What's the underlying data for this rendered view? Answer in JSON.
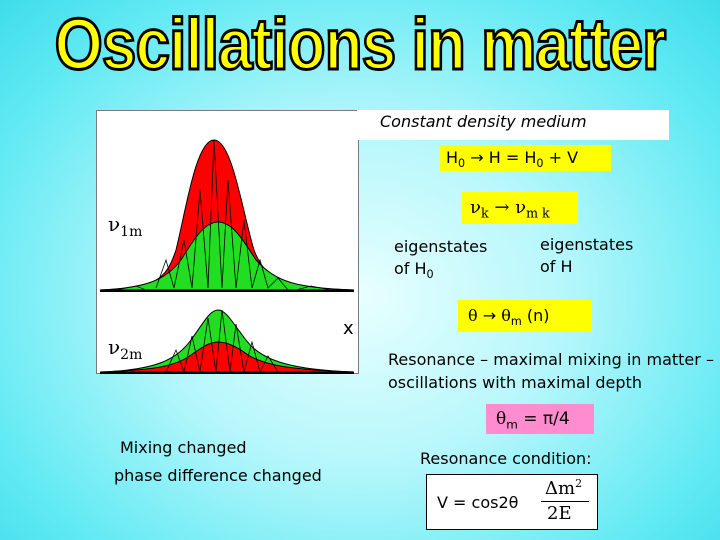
{
  "title": "Oscillations in matter",
  "panel_header": "Constant density medium",
  "hamiltonian": {
    "H0": "H",
    "sub0": "0",
    "arrow": "→",
    "rhs": "H = H",
    "rhs_sub": "0",
    "tail": "+ V"
  },
  "nu_k": {
    "nu": "ν",
    "k": "k",
    "arrow": "→",
    "nu2": "ν",
    "mk": "m k"
  },
  "nu1m": {
    "nu": "ν",
    "sub": "1m"
  },
  "nu2m": {
    "nu": "ν",
    "sub": "2m"
  },
  "eigen_H0": {
    "line1": "eigenstates",
    "line2": "of H",
    "sub": "0"
  },
  "eigen_H": {
    "line1": "eigenstates",
    "line2": "of H"
  },
  "theta": {
    "t": "θ",
    "arrow": "→",
    "t2": "θ",
    "sub": "m",
    "tail": "(n)"
  },
  "x_mark": "x",
  "resonance_text": {
    "line1": "Resonance – maximal mixing in matter –",
    "line2": "oscillations with maximal depth"
  },
  "theta_m": {
    "t": "θ",
    "sub": "m",
    "rest": "= π/4"
  },
  "mixing": {
    "line1": "Mixing changed",
    "line2": "phase difference changed"
  },
  "condition_label": "Resonance condition:",
  "formula": {
    "lhs": "V =  cos2θ",
    "num": "Δm",
    "num_sup": "2",
    "den": "2E"
  },
  "colors": {
    "red": "#ff0000",
    "green": "#22dd22",
    "yellow": "#ffff00",
    "pink": "#ff8ccf"
  }
}
